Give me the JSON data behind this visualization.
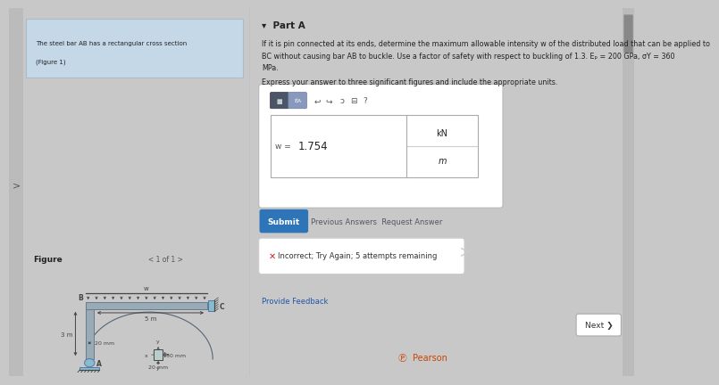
{
  "bg_color": "#c8c8c8",
  "left_panel_bg": "#d4d4d4",
  "right_panel_bg": "#d8d8d8",
  "left_top_box_bg": "#c5d8e8",
  "left_top_text_line1": "The steel bar AB has a rectangular cross section",
  "left_top_text_line2": "(Figure 1)",
  "figure_label": "Figure",
  "page_nav": "< 1 of 1 >",
  "part_a_label": "▾  Part A",
  "problem_line1": "If it is pin connected at its ends, determine the maximum allowable intensity w of the distributed load that can be applied to",
  "problem_line2": "BC without causing bar AB to buckle. Use a factor of safety with respect to buckling of 1.3. Eₚ = 200 GPa, σY = 360",
  "problem_line3": "MPa.",
  "express_text": "Express your answer to three significant figures and include the appropriate units.",
  "answer_value": "1.754",
  "answer_prefix": "w =",
  "unit_top": "kN",
  "unit_bottom": "m",
  "submit_btn_text": "Submit",
  "submit_btn_color": "#2e74b8",
  "prev_answers_text": "Previous Answers  Request Answer",
  "incorrect_text": "Incorrect; Try Again; 5 attempts remaining",
  "next_btn_text": "Next ❯",
  "provide_feedback_text": "Provide Feedback",
  "pearson_text": "Pearson",
  "dim_5m": "5 m",
  "dim_3m": "3 m",
  "dim_20mm_h": "20 mm",
  "dim_30mm": "30 mm",
  "dim_20mm_v": "20 mm",
  "label_B": "B",
  "label_C": "C",
  "label_A": "A",
  "label_x": "x",
  "label_y": "y",
  "label_w": "w",
  "steel_color": "#9aabb8",
  "steel_edge": "#6a7a88",
  "pin_color": "#88bbcc",
  "dark": "#444444",
  "text_dark": "#222222",
  "text_blue": "#2255aa"
}
